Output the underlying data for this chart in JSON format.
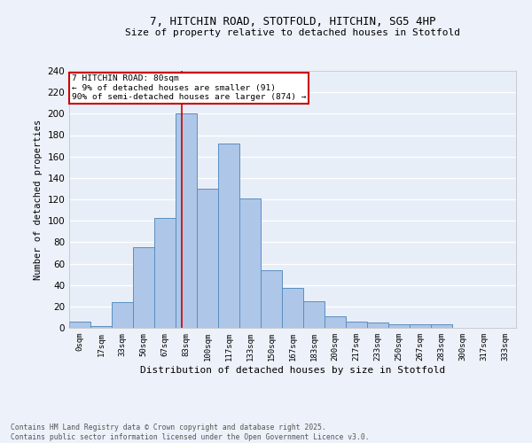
{
  "title_line1": "7, HITCHIN ROAD, STOTFOLD, HITCHIN, SG5 4HP",
  "title_line2": "Size of property relative to detached houses in Stotfold",
  "xlabel": "Distribution of detached houses by size in Stotfold",
  "ylabel": "Number of detached properties",
  "bar_labels": [
    "0sqm",
    "17sqm",
    "33sqm",
    "50sqm",
    "67sqm",
    "83sqm",
    "100sqm",
    "117sqm",
    "133sqm",
    "150sqm",
    "167sqm",
    "183sqm",
    "200sqm",
    "217sqm",
    "233sqm",
    "250sqm",
    "267sqm",
    "283sqm",
    "300sqm",
    "317sqm",
    "333sqm"
  ],
  "bar_values": [
    6,
    2,
    24,
    75,
    103,
    200,
    130,
    172,
    121,
    54,
    37,
    25,
    11,
    6,
    5,
    3,
    3,
    3,
    0,
    0,
    0
  ],
  "bar_color": "#aec6e8",
  "bar_edge_color": "#5a8fc0",
  "bg_color": "#e8eef7",
  "grid_color": "#ffffff",
  "annotation_text_line1": "7 HITCHIN ROAD: 80sqm",
  "annotation_text_line2": "← 9% of detached houses are smaller (91)",
  "annotation_text_line3": "90% of semi-detached houses are larger (874) →",
  "vline_color": "#cc0000",
  "box_edge_color": "#cc0000",
  "footer_line1": "Contains HM Land Registry data © Crown copyright and database right 2025.",
  "footer_line2": "Contains public sector information licensed under the Open Government Licence v3.0.",
  "ylim": [
    0,
    240
  ],
  "yticks": [
    0,
    20,
    40,
    60,
    80,
    100,
    120,
    140,
    160,
    180,
    200,
    220,
    240
  ],
  "vline_x_index": 4.81,
  "fig_bg": "#edf1f9"
}
